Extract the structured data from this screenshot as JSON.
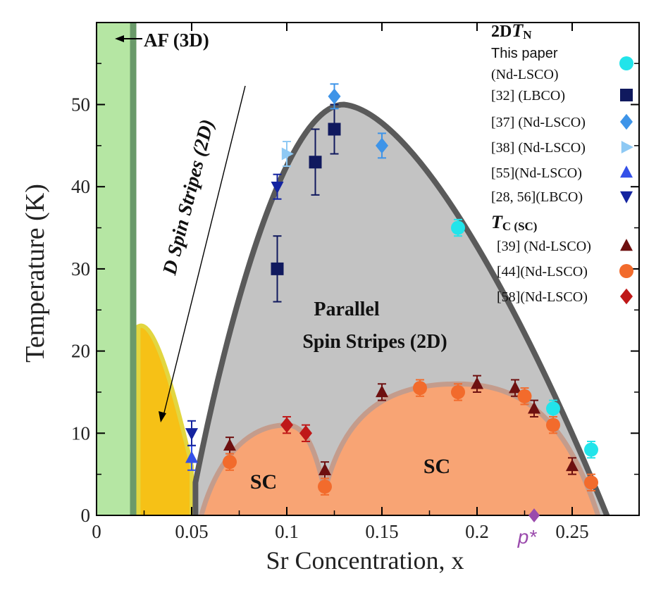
{
  "chart_data": {
    "type": "scatter",
    "xlabel": "Sr Concentration, x",
    "ylabel": "Temperature (K)",
    "xlim": [
      0,
      0.3
    ],
    "ylim": [
      0,
      60
    ],
    "xticks": [
      0,
      0.05,
      0.1,
      0.15,
      0.2,
      0.25
    ],
    "xtick_labels": [
      "0",
      "0.05",
      "0.1",
      "0.15",
      "0.2",
      "0.25"
    ],
    "yticks": [
      0,
      10,
      20,
      30,
      40,
      50
    ],
    "ytick_labels": [
      "0",
      "10",
      "20",
      "30",
      "40",
      "50"
    ],
    "grid": false,
    "legend_position": "top-right",
    "legend_groups": [
      {
        "header_main": "2D",
        "header_italic": "T",
        "header_sub": "N",
        "first_series": 0
      },
      {
        "header_main": "",
        "header_italic": "T",
        "header_sub": "C (SC)",
        "first_series": 6
      }
    ],
    "series": [
      {
        "name": "This paper (Nd-LSCO)",
        "label_lines": [
          "This paper",
          "(Nd-LSCO)"
        ],
        "marker": "circle",
        "color": "#22e4ea",
        "x": [
          0.19,
          0.24,
          0.26
        ],
        "y": [
          35,
          13,
          8
        ],
        "yerr": [
          1,
          1,
          1
        ]
      },
      {
        "name": "[32] (LBCO)",
        "marker": "square",
        "color": "#10195e",
        "x": [
          0.095,
          0.115,
          0.125
        ],
        "y": [
          30,
          43,
          47
        ],
        "yerr": [
          4,
          4,
          3
        ]
      },
      {
        "name": "[37] (Nd-LSCO)",
        "marker": "diamond",
        "color": "#3e94e8",
        "x": [
          0.125,
          0.15
        ],
        "y": [
          51,
          45
        ],
        "yerr": [
          1.5,
          1.5
        ]
      },
      {
        "name": "[38] (Nd-LSCO)",
        "marker": "triangle-right",
        "color": "#8ec9f4",
        "x": [
          0.1
        ],
        "y": [
          44
        ],
        "yerr": [
          1.5
        ]
      },
      {
        "name": "[55](Nd-LSCO)",
        "marker": "triangle-up",
        "color": "#3450e8",
        "x": [
          0.05
        ],
        "y": [
          7
        ],
        "yerr": [
          1.5
        ]
      },
      {
        "name": "[28, 56](LBCO)",
        "marker": "triangle-down",
        "color": "#1424a0",
        "x": [
          0.05,
          0.095
        ],
        "y": [
          10,
          40
        ],
        "yerr": [
          1.5,
          1.5
        ]
      },
      {
        "name": "[39] (Nd-LSCO)",
        "marker": "triangle-up",
        "color": "#6e1010",
        "x": [
          0.07,
          0.12,
          0.15,
          0.2,
          0.22,
          0.23,
          0.25
        ],
        "y": [
          8.5,
          5.5,
          15,
          16,
          15.5,
          13,
          6
        ],
        "yerr": [
          1,
          1,
          1,
          1,
          1,
          1,
          1
        ]
      },
      {
        "name": "[44](Nd-LSCO)",
        "marker": "circle",
        "color": "#f26b2c",
        "x": [
          0.07,
          0.12,
          0.17,
          0.19,
          0.225,
          0.24,
          0.26
        ],
        "y": [
          6.5,
          3.5,
          15.5,
          15,
          14.5,
          11,
          4
        ],
        "yerr": [
          1,
          1,
          1,
          1,
          1,
          1,
          1
        ]
      },
      {
        "name": "[58](Nd-LSCO)",
        "marker": "diamond",
        "color": "#bf1818",
        "x": [
          0.1,
          0.11
        ],
        "y": [
          11,
          10
        ],
        "yerr": [
          1,
          1
        ]
      }
    ],
    "annotations": [
      {
        "text": "AF (3D)",
        "x": 0.024,
        "y": 58
      },
      {
        "text": "D Spin Stripes (2D)",
        "x": 0.06,
        "y": 36
      },
      {
        "text": "Parallel",
        "x": 0.14,
        "y": 25
      },
      {
        "text": "Spin Stripes (2D)",
        "x": 0.14,
        "y": 21
      },
      {
        "text": "SC",
        "x": 0.091,
        "y": 4
      },
      {
        "text": "SC",
        "x": 0.187,
        "y": 5.5
      },
      {
        "text": "p*",
        "x": 0.23,
        "y": -2.8
      }
    ],
    "p_star": {
      "label": "p*",
      "x": 0.23,
      "y": 0
    },
    "regions": {
      "af_3d_boundary_x": 0.02,
      "dome_2d_peak": {
        "x": 0.13,
        "y": 50
      },
      "dome_2d_ends": [
        0.052,
        0.27
      ],
      "diagonal_stripes_peak": {
        "x": 0.025,
        "y": 23
      },
      "sc_dome_1_peak": {
        "x": 0.1,
        "y": 11
      },
      "sc_dome_2_peak": {
        "x": 0.19,
        "y": 16
      }
    }
  }
}
